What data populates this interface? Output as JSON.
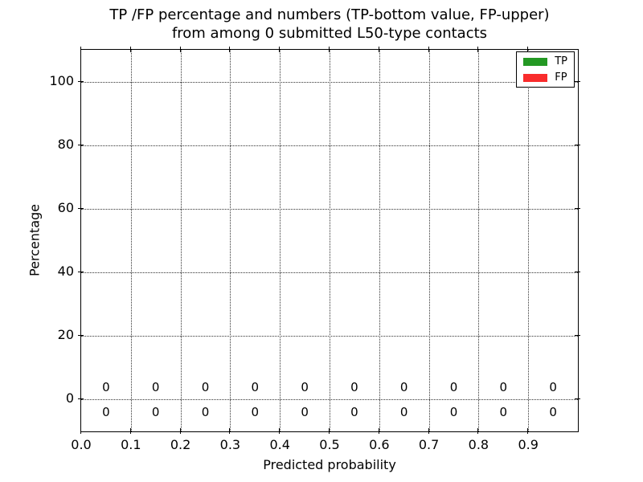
{
  "chart_data": {
    "type": "bar",
    "title_lines": [
      "TP /FP percentage and numbers (TP-bottom value, FP-upper)",
      "from among 0 submitted L50-type contacts"
    ],
    "xlabel": "Predicted probability",
    "ylabel": "Percentage",
    "xlim": [
      0.0,
      1.0
    ],
    "ylim": [
      -10,
      110
    ],
    "grid": true,
    "grid_linestyle": "dotted",
    "x_ticks": [
      {
        "value": 0.0,
        "label": "0.0"
      },
      {
        "value": 0.1,
        "label": "0.1"
      },
      {
        "value": 0.2,
        "label": "0.2"
      },
      {
        "value": 0.3,
        "label": "0.3"
      },
      {
        "value": 0.4,
        "label": "0.4"
      },
      {
        "value": 0.5,
        "label": "0.5"
      },
      {
        "value": 0.6,
        "label": "0.6"
      },
      {
        "value": 0.7,
        "label": "0.7"
      },
      {
        "value": 0.8,
        "label": "0.8"
      },
      {
        "value": 0.9,
        "label": "0.9"
      }
    ],
    "y_ticks": [
      {
        "value": 0,
        "label": "0"
      },
      {
        "value": 20,
        "label": "20"
      },
      {
        "value": 40,
        "label": "40"
      },
      {
        "value": 60,
        "label": "60"
      },
      {
        "value": 80,
        "label": "80"
      },
      {
        "value": 100,
        "label": "100"
      }
    ],
    "bin_centers": [
      0.05,
      0.15,
      0.25,
      0.35,
      0.45,
      0.55,
      0.65,
      0.75,
      0.85,
      0.95
    ],
    "bar_width": 0.08,
    "series": [
      {
        "name": "TP",
        "color": "#239823",
        "values": [
          0,
          0,
          0,
          0,
          0,
          0,
          0,
          0,
          0,
          0
        ],
        "count_label_y": -4
      },
      {
        "name": "FP",
        "color": "#f92c2c",
        "values": [
          0,
          0,
          0,
          0,
          0,
          0,
          0,
          0,
          0,
          0
        ],
        "count_label_y": 4
      }
    ],
    "legend_position": "upper right"
  }
}
